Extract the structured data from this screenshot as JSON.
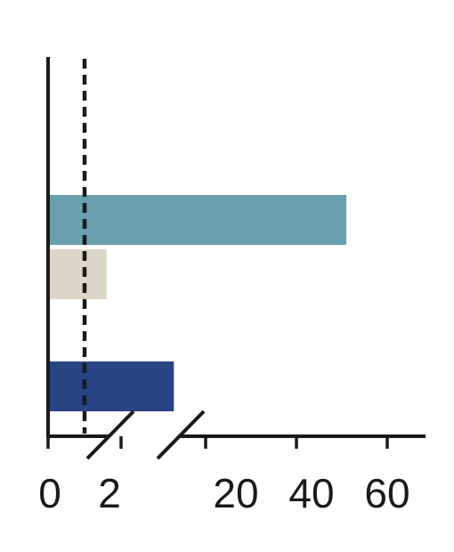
{
  "chart_data": {
    "type": "bar",
    "orientation": "horizontal",
    "x_axis": {
      "broken": true,
      "segments": [
        {
          "range": [
            0,
            2
          ]
        },
        {
          "range": [
            10,
            60
          ]
        }
      ],
      "ticks": [
        0,
        2,
        20,
        40,
        60
      ],
      "tick_labels": [
        "0",
        "2",
        "20",
        "40",
        "60"
      ]
    },
    "reference_line": {
      "x": 1,
      "style": "dashed",
      "color": "#1a1a1a"
    },
    "bars": [
      {
        "value": 51,
        "color": "#6a9fae"
      },
      {
        "value": 1.6,
        "color": "#ddd6c6"
      },
      {
        "value": 13,
        "color": "#284483"
      }
    ],
    "grid": false,
    "legend": "none"
  }
}
